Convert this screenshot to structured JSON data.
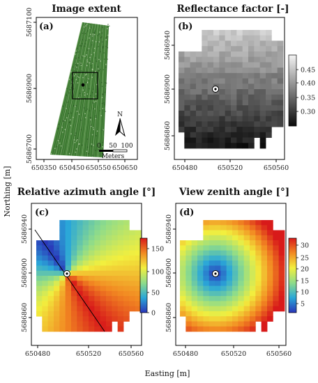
{
  "figure": {
    "xlabel": "Easting [m]",
    "ylabel": "Northing [m]"
  },
  "chart_data": [
    {
      "id": "a",
      "type": "map",
      "panel_label": "(a)",
      "title": "Image extent",
      "xticks": [
        "650350",
        "650450",
        "650550",
        "650650"
      ],
      "yticks": [
        "5687100",
        "5686900",
        "5686700"
      ],
      "north_label": "N",
      "scale_ticks": [
        "0",
        "50",
        "100"
      ],
      "scale_unit": "Meters",
      "colors": {
        "field": "#3f7a34",
        "frame": "#000000"
      }
    },
    {
      "id": "b",
      "type": "heatmap",
      "panel_label": "(b)",
      "title": "Reflectance factor [-]",
      "xticks": [
        "650480",
        "650520",
        "650560"
      ],
      "yticks": [
        "5686940",
        "5686900",
        "5686860"
      ],
      "colorbar_ticks": [
        "0.45",
        "0.40",
        "0.35",
        "0.30"
      ],
      "range": [
        0.27,
        0.48
      ],
      "colormap": "gray"
    },
    {
      "id": "c",
      "type": "heatmap",
      "panel_label": "(c)",
      "title": "Relative azimuth angle [°]",
      "xticks": [
        "650480",
        "650520",
        "650560"
      ],
      "yticks": [
        "5686940",
        "5686900",
        "5686860"
      ],
      "colorbar_ticks": [
        "150",
        "100",
        "50",
        "0"
      ],
      "range": [
        0,
        180
      ],
      "colormap": "rainbow"
    },
    {
      "id": "d",
      "type": "heatmap",
      "panel_label": "(d)",
      "title": "View zenith angle [°]",
      "xticks": [
        "650480",
        "650520",
        "650560"
      ],
      "yticks": [
        "5686940",
        "5686900",
        "5686860"
      ],
      "colorbar_ticks": [
        "30",
        "25",
        "20",
        "15",
        "10",
        "5"
      ],
      "range": [
        0,
        33
      ],
      "colormap": "rainbow"
    }
  ]
}
